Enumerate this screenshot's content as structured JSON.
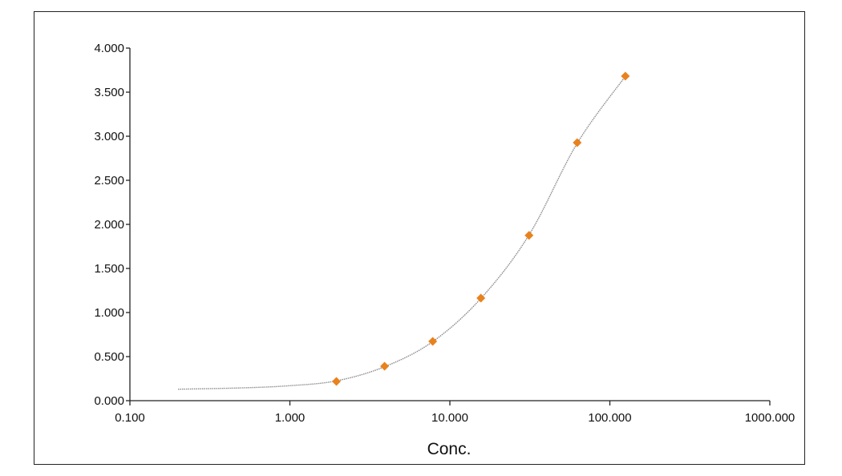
{
  "chart_data": {
    "type": "scatter",
    "title": "",
    "xlabel": "Conc.",
    "ylabel": "",
    "x_scale": "log",
    "xlim": [
      0.1,
      1000
    ],
    "ylim": [
      0,
      4
    ],
    "grid": false,
    "x_ticks": [
      0.1,
      1,
      10,
      100,
      1000
    ],
    "x_tick_labels": [
      "0.100",
      "1.000",
      "10.000",
      "100.000",
      "1000.000"
    ],
    "y_ticks": [
      0,
      0.5,
      1,
      1.5,
      2,
      2.5,
      3,
      3.5,
      4
    ],
    "y_tick_labels": [
      "0.000",
      "0.500",
      "1.000",
      "1.500",
      "2.000",
      "2.500",
      "3.000",
      "3.500",
      "4.000"
    ],
    "series": [
      {
        "type": "scatter",
        "marker": "diamond",
        "color": "#e8821e",
        "x": [
          1.953,
          3.906,
          7.813,
          15.625,
          31.25,
          62.5,
          125
        ],
        "y": [
          0.218,
          0.391,
          0.673,
          1.164,
          1.875,
          2.927,
          3.682
        ]
      },
      {
        "type": "line",
        "style": "dotted",
        "color": "#8a8a8a",
        "x": [
          0.2,
          0.5,
          1.0,
          1.953,
          3.906,
          7.813,
          15.625,
          31.25,
          62.5,
          125
        ],
        "y": [
          0.13,
          0.145,
          0.17,
          0.225,
          0.385,
          0.67,
          1.16,
          1.88,
          2.92,
          3.68
        ]
      }
    ]
  }
}
